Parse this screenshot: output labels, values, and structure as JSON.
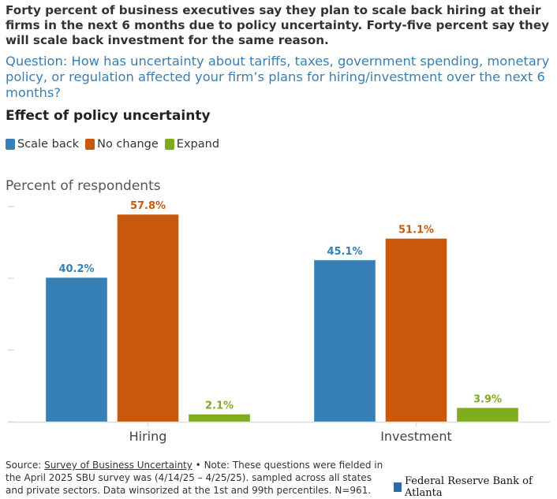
{
  "headline": "Forty percent of business executives say they plan to scale back hiring at their firms in the next 6 months due to policy uncertainty. Forty-five percent say they will scale back investment for the same reason.",
  "question": "Question: How has uncertainty about tariffs, taxes, government spending, monetary policy, or regulation affected your firm’s plans for hiring/investment over the next 6 months?",
  "footer": {
    "source_prefix": "Source: ",
    "source_link": "Survey of Business Uncertainty",
    "note": " • Note: These questions were fielded in the April 2025 SBU survey was (4/14/25 – 4/25/25). sampled across all states and private sectors. Data winsorized at the 1st and 99th percentiles. N=961."
  },
  "logo_text": "Federal Reserve Bank of Atlanta",
  "chart_data": {
    "type": "bar",
    "title": "Effect of policy uncertainty",
    "ylabel": "Percent of respondents",
    "xlabel": "",
    "categories": [
      "Hiring",
      "Investment"
    ],
    "series": [
      {
        "name": "Scale back",
        "color": "#3580b4",
        "values": [
          40.2,
          45.1
        ],
        "labels": [
          "40.2%",
          "45.1%"
        ]
      },
      {
        "name": "No change",
        "color": "#c8580c",
        "values": [
          57.8,
          51.1
        ],
        "labels": [
          "57.8%",
          "51.1%"
        ]
      },
      {
        "name": "Expand",
        "color": "#7fab1e",
        "values": [
          2.1,
          3.9
        ],
        "labels": [
          "2.1%",
          "3.9%"
        ]
      }
    ],
    "ylim": [
      0,
      60
    ],
    "yticks": [
      0,
      20,
      40,
      60
    ],
    "ytick_labels_shown": false,
    "grid": false,
    "legend": "top-left"
  }
}
